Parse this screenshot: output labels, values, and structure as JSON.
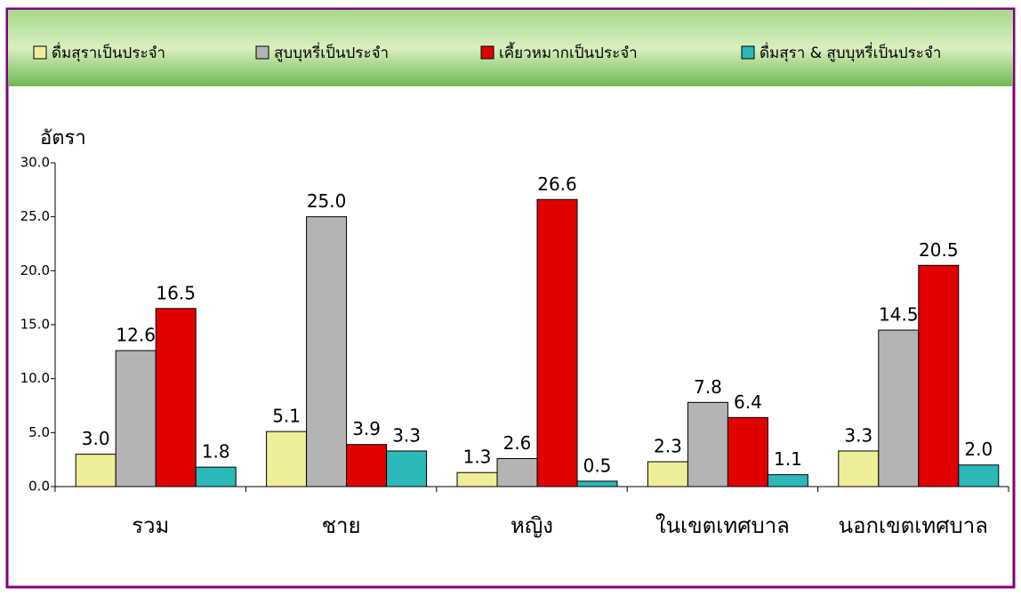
{
  "chart_data": {
    "type": "bar",
    "y_label": "อัตรา",
    "categories": [
      "รวม",
      "ชาย",
      "หญิง",
      "ในเขตเทศบาล",
      "นอกเขตเทศบาล"
    ],
    "series": [
      {
        "name": "ดื่มสุราเป็นประจำ",
        "color": "#eeee99",
        "values": [
          3.0,
          5.1,
          1.3,
          2.3,
          3.3
        ],
        "value_labels": [
          "3.0",
          "5.1",
          "1.3",
          "2.3",
          "3.3"
        ]
      },
      {
        "name": "สูบบุหรี่เป็นประจำ",
        "color": "#b4b4b4",
        "values": [
          12.6,
          25.0,
          2.6,
          7.8,
          14.5
        ],
        "value_labels": [
          "12.6",
          "25.0",
          "2.6",
          "7.8",
          "14.5"
        ]
      },
      {
        "name": "เคี้ยวหมากเป็นประจำ",
        "color": "#e00000",
        "values": [
          16.5,
          3.9,
          26.6,
          6.4,
          20.5
        ],
        "value_labels": [
          "16.5",
          "3.9",
          "26.6",
          "6.4",
          "20.5"
        ]
      },
      {
        "name": "ดื่มสุรา & สูบบุหรี่เป็นประจำ",
        "color": "#2cb8b8",
        "values": [
          1.8,
          3.3,
          0.5,
          1.1,
          2.0
        ],
        "value_labels": [
          "1.8",
          "3.3",
          "0.5",
          "1.1",
          "2.0"
        ]
      }
    ],
    "ylim": [
      0,
      30
    ],
    "yticks": [
      {
        "value": 0,
        "label": "0.0"
      },
      {
        "value": 5,
        "label": "5.0"
      },
      {
        "value": 10,
        "label": "10.0"
      },
      {
        "value": 15,
        "label": "15.0"
      },
      {
        "value": 20,
        "label": "20.0"
      },
      {
        "value": 25,
        "label": "25.0"
      },
      {
        "value": 30,
        "label": "30.0"
      }
    ],
    "grid": false
  }
}
